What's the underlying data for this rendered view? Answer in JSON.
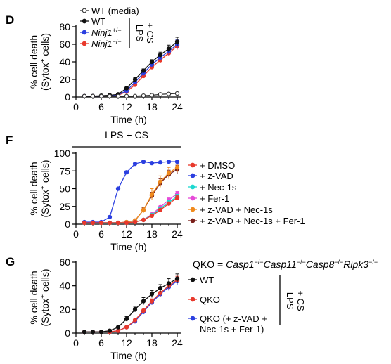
{
  "chart_data": [
    {
      "panel": "D",
      "type": "line",
      "xlabel": "Time (h)",
      "ylabel_line1": "% cell death",
      "ylabel_line2": "(Sytox",
      "ylabel_sup": "+",
      "ylabel_end": " cells)",
      "xlim": [
        0,
        25
      ],
      "ylim": [
        0,
        80
      ],
      "xticks": [
        0,
        6,
        12,
        18,
        24
      ],
      "yticks": [
        0,
        20,
        40,
        60,
        80
      ],
      "x": [
        2,
        4,
        6,
        8,
        10,
        12,
        14,
        16,
        18,
        20,
        22,
        24
      ],
      "bracket_label_1": "LPS",
      "bracket_label_2": "+ CS",
      "series": [
        {
          "name": "WT (media)",
          "name_italic": false,
          "sup": "",
          "color": "#333333",
          "marker": "open",
          "values": [
            1,
            1,
            1,
            1,
            1,
            1,
            1,
            1.5,
            2,
            3,
            3.5,
            4
          ],
          "err": [
            0,
            0,
            0,
            0,
            0,
            0,
            0,
            0,
            0,
            0,
            0,
            0
          ]
        },
        {
          "name": "WT",
          "name_italic": false,
          "sup": "",
          "color": "#111111",
          "marker": "filled",
          "values": [
            1,
            1,
            1.5,
            2,
            3,
            10,
            20,
            30,
            40,
            48,
            55,
            63
          ],
          "err": [
            0,
            0,
            0,
            0,
            0.5,
            1.5,
            2,
            2,
            2.5,
            3,
            4,
            5
          ]
        },
        {
          "name": "Ninj1",
          "name_italic": true,
          "sup": "+/−",
          "color": "#2b3fe0",
          "marker": "filled",
          "values": [
            1,
            1,
            1,
            1.5,
            2.5,
            7,
            17,
            27,
            37,
            45,
            52,
            60
          ],
          "err": [
            0,
            0,
            0,
            0,
            0.5,
            1,
            2,
            2,
            2.5,
            3,
            4,
            5
          ]
        },
        {
          "name": "Ninj1",
          "name_italic": true,
          "sup": "−/−",
          "color": "#e8392c",
          "marker": "filled",
          "values": [
            1,
            1,
            1,
            1.5,
            2,
            6,
            14,
            24,
            34,
            42,
            50,
            58
          ],
          "err": [
            0,
            0,
            0,
            0,
            0.5,
            1,
            1.5,
            2,
            2.5,
            3,
            3.5,
            4
          ]
        }
      ]
    },
    {
      "panel": "F",
      "type": "line",
      "title": "LPS + CS",
      "xlabel": "Time (h)",
      "ylabel_line1": "% cell death",
      "ylabel_line2": "(Sytox",
      "ylabel_sup": "+",
      "ylabel_end": " cells)",
      "xlim": [
        0,
        25
      ],
      "ylim": [
        0,
        100
      ],
      "xticks": [
        0,
        6,
        12,
        18,
        24
      ],
      "yticks": [
        0,
        25,
        50,
        75,
        100
      ],
      "x": [
        2,
        4,
        6,
        8,
        10,
        12,
        14,
        16,
        18,
        20,
        22,
        24
      ],
      "series": [
        {
          "name": "+ DMSO",
          "color": "#e8392c",
          "values": [
            2,
            2,
            2,
            2,
            2,
            2,
            3,
            6,
            12,
            20,
            29,
            37
          ],
          "err": [
            0,
            0,
            0,
            0,
            0,
            0,
            0,
            0,
            1,
            2,
            2,
            3
          ]
        },
        {
          "name": "+ z-VAD",
          "color": "#2b3fe0",
          "values": [
            3,
            3,
            3,
            10,
            50,
            73,
            85,
            88,
            86,
            87,
            88,
            88
          ],
          "err": [
            0,
            0,
            0,
            0,
            0,
            2,
            1,
            1,
            1,
            1,
            1,
            1
          ]
        },
        {
          "name": "+ Nec-1s",
          "color": "#1cd8d0",
          "values": [
            2,
            2,
            2,
            2,
            2,
            2,
            3,
            6,
            13,
            22,
            31,
            39
          ],
          "err": [
            0,
            0,
            0,
            0,
            0,
            0,
            0,
            0,
            1,
            2,
            2,
            3
          ]
        },
        {
          "name": "+ Fer-1",
          "color": "#e64ad8",
          "values": [
            2,
            2,
            2,
            2,
            2,
            2,
            3,
            6,
            14,
            24,
            34,
            43
          ],
          "err": [
            0,
            0,
            0,
            0,
            0,
            0,
            0,
            0,
            1,
            2,
            3,
            3
          ]
        },
        {
          "name": "+ z-VAD + Nec-1s",
          "color": "#f08a1c",
          "values": [
            2,
            2,
            2,
            2,
            2,
            3,
            5,
            20,
            42,
            60,
            72,
            80
          ],
          "err": [
            0,
            0,
            0,
            0,
            0,
            0,
            1,
            4,
            8,
            8,
            8,
            7
          ]
        },
        {
          "name": "+ z-VAD + Nec-1s + Fer-1",
          "color": "#7a1f1a",
          "values": [
            2,
            2,
            2,
            2,
            2,
            3,
            5,
            20,
            40,
            58,
            70,
            77
          ],
          "err": [
            0,
            0,
            0,
            0,
            0,
            0,
            1,
            3,
            5,
            6,
            6,
            6
          ]
        }
      ]
    },
    {
      "panel": "G",
      "type": "line",
      "xlabel": "Time (h)",
      "ylabel_line1": "% cell death",
      "ylabel_line2": "(Sytox",
      "ylabel_sup": "+",
      "ylabel_end": " cells)",
      "xlim": [
        0,
        25
      ],
      "ylim": [
        0,
        60
      ],
      "xticks": [
        0,
        6,
        12,
        18,
        24
      ],
      "yticks": [
        0,
        20,
        40,
        60
      ],
      "x": [
        2,
        4,
        6,
        8,
        10,
        12,
        14,
        16,
        18,
        20,
        22,
        24
      ],
      "qko_prefix": "QKO = ",
      "qko_genes": [
        {
          "name": "Casp1",
          "sup": "−/−"
        },
        {
          "name": "Casp11",
          "sup": "−/−"
        },
        {
          "name": "Casp8",
          "sup": "−/−"
        },
        {
          "name": "Ripk3",
          "sup": "−/−"
        }
      ],
      "bracket_label_1": "LPS",
      "bracket_label_2": "+ CS",
      "series": [
        {
          "name": "WT",
          "color": "#111111",
          "values": [
            1,
            1,
            1,
            2,
            5,
            12,
            20,
            27,
            33,
            38,
            42,
            46
          ],
          "err": [
            0,
            0,
            0,
            0,
            1,
            2,
            2,
            3,
            3,
            3,
            4,
            4
          ]
        },
        {
          "name": "QKO",
          "color": "#e8392c",
          "values": [
            1,
            1,
            1,
            1,
            2,
            5,
            11,
            19,
            27,
            34,
            40,
            45
          ],
          "err": [
            0,
            0,
            0,
            0,
            0,
            1,
            1,
            2,
            2,
            3,
            3,
            3
          ]
        },
        {
          "name": "QKO (+ z-VAD +",
          "name_line2": "Nec-1s + Fer-1)",
          "color": "#2b3fe0",
          "values": [
            1,
            1,
            1,
            1,
            2,
            5,
            10,
            18,
            26,
            33,
            39,
            44
          ],
          "err": [
            0,
            0,
            0,
            0,
            0,
            1,
            1,
            2,
            2,
            2,
            3,
            3
          ]
        }
      ]
    }
  ]
}
